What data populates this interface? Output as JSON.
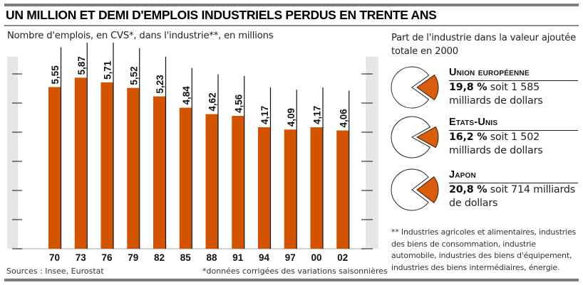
{
  "header": {
    "title": "UN MILLION ET DEMI D'EMPLOIS INDUSTRIELS PERDUS EN TRENTE ANS",
    "subtitle": "Nombre d'emplois, en CVS*, dans l'industrie**, en millions"
  },
  "colors": {
    "bar": "#d35400",
    "slice": "#d95d0f",
    "axis_strip": "#e6e6e6",
    "rule": "#7d7d7d"
  },
  "chart_data": [
    {
      "type": "bar",
      "title": "UN MILLION ET DEMI D'EMPLOIS INDUSTRIELS PERDUS EN TRENTE ANS",
      "subtitle": "Nombre d'emplois, en CVS*, dans l'industrie**, en millions",
      "xlabel": "",
      "ylabel": "",
      "categories": [
        "70",
        "73",
        "76",
        "79",
        "82",
        "85",
        "88",
        "91",
        "94",
        "97",
        "00",
        "02"
      ],
      "values": [
        5.55,
        5.87,
        5.71,
        5.52,
        5.23,
        4.84,
        4.62,
        4.56,
        4.17,
        4.09,
        4.17,
        4.06
      ],
      "value_labels": [
        "5,55",
        "5,87",
        "5,71",
        "5,52",
        "5,23",
        "4,84",
        "4,62",
        "4,56",
        "4,17",
        "4,09",
        "4,17",
        "4,06"
      ],
      "ylim": [
        0,
        6.6
      ],
      "yticks": [
        0,
        1,
        2,
        3,
        4,
        5,
        6
      ],
      "ytick_labels_shown": false,
      "grid": false,
      "legend": "none"
    },
    {
      "type": "pie",
      "title": "Part de l'industrie dans la valeur ajoutée totale en 2000",
      "series": [
        {
          "name": "Union européenne",
          "value": 19.8,
          "label": "19,8 %",
          "amount_text": "soit 1 585 milliards de dollars"
        },
        {
          "name": "Etats-Unis",
          "value": 16.2,
          "label": "16,2 %",
          "amount_text": "soit 1 502 milliards de dollars"
        },
        {
          "name": "Japon",
          "value": 20.8,
          "label": "20,8 %",
          "amount_text": "soit 714 milliards de dollars"
        }
      ]
    }
  ],
  "pies": {
    "title": "Part de l'industrie dans la valeur ajoutée totale en 2000",
    "items": [
      {
        "name": "Union européenne",
        "pct_label": "19,8 %",
        "rest": " soit 1 585 milliards de dollars",
        "value": 19.8
      },
      {
        "name": "Etats-Unis",
        "pct_label": "16,2 %",
        "rest": " soit 1 502 milliards de dollars",
        "value": 16.2
      },
      {
        "name": "Japon",
        "pct_label": "20,8 %",
        "rest": " soit 714 milliards de dollars",
        "value": 20.8
      }
    ]
  },
  "footer": {
    "industries_note": "** Industries agricoles et alimentaires, industries des biens de consommation, industrie automobile, industries des biens d'équipement, industries des biens intermédiaires, énergie.",
    "sources": "Sources : Insee, Eurostat",
    "cvs_note": "*données corrigées des variations saisonnières"
  }
}
